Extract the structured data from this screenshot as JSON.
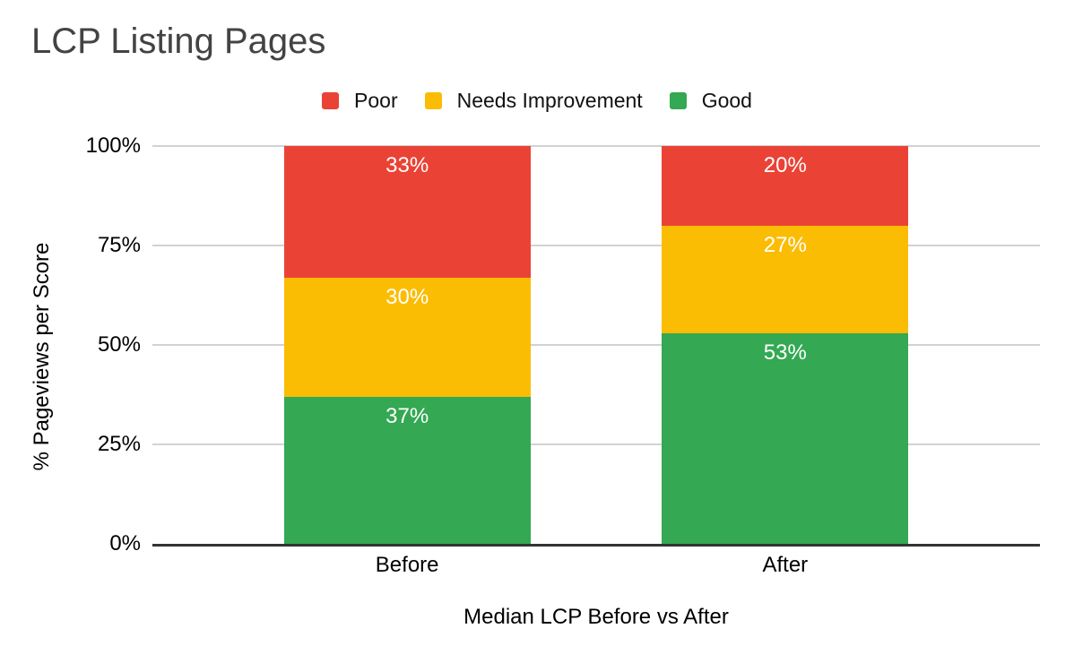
{
  "title": "LCP Listing Pages",
  "legend": {
    "position": "top",
    "items": [
      {
        "label": "Poor",
        "color": "#EA4335"
      },
      {
        "label": "Needs Improvement",
        "color": "#FBBC04"
      },
      {
        "label": "Good",
        "color": "#34A853"
      }
    ]
  },
  "chart_data": {
    "type": "bar",
    "stacked": true,
    "stacked_total": 100,
    "title": "LCP Listing Pages",
    "xlabel": "Median LCP Before vs After",
    "ylabel": "% Pageviews per Score",
    "categories": [
      "Before",
      "After"
    ],
    "series": [
      {
        "name": "Poor",
        "color": "#EA4335",
        "values": [
          33,
          20
        ],
        "labels": [
          "33%",
          "20%"
        ]
      },
      {
        "name": "Needs Improvement",
        "color": "#FBBC04",
        "values": [
          30,
          27
        ],
        "labels": [
          "30%",
          "27%"
        ]
      },
      {
        "name": "Good",
        "color": "#34A853",
        "values": [
          37,
          53
        ],
        "labels": [
          "37%",
          "53%"
        ]
      }
    ],
    "ylim": [
      0,
      100
    ],
    "yticks": [
      {
        "label": "0%",
        "value": 0
      },
      {
        "label": "25%",
        "value": 25
      },
      {
        "label": "50%",
        "value": 50
      },
      {
        "label": "75%",
        "value": 75
      },
      {
        "label": "100%",
        "value": 100
      }
    ],
    "grid": true,
    "legend_position": "top",
    "data_label_color": "#ffffff"
  },
  "colors": {
    "title_text": "#434343",
    "axis_text": "#000000",
    "gridline": "#d2d2d2",
    "baseline": "#333333",
    "background": "#ffffff"
  }
}
